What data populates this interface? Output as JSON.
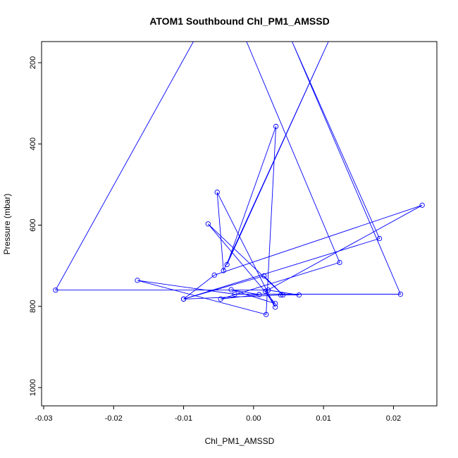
{
  "chart_data": {
    "type": "line",
    "title": "ATOM1 Southbound Chl_PM1_AMSSD",
    "xlabel": "Chl_PM1_AMSSD",
    "ylabel": "Pressure (mbar)",
    "xlim": [
      -0.0303,
      0.0262
    ],
    "ylim": [
      1045,
      148
    ],
    "y_inverted": true,
    "x_ticks": [
      -0.03,
      -0.02,
      -0.01,
      0.0,
      0.01,
      0.02
    ],
    "x_tick_labels": [
      "-0.03",
      "-0.02",
      "-0.01",
      "0.00",
      "0.01",
      "0.02"
    ],
    "y_ticks": [
      200,
      400,
      600,
      800,
      1000
    ],
    "y_tick_labels": [
      "200",
      "400",
      "600",
      "800",
      "1000"
    ],
    "grid": false,
    "series": [
      {
        "color": "#0000ff",
        "points": [
          {
            "x": -0.0086,
            "y": 148
          },
          {
            "x": -0.0283,
            "y": 760
          },
          {
            "x": 0.0021,
            "y": 760
          },
          {
            "x": 0.0065,
            "y": 772
          },
          {
            "x": 0.0039,
            "y": 772
          },
          {
            "x": -0.01,
            "y": 782
          },
          {
            "x": 0.018,
            "y": 633
          },
          {
            "x": 0.0055,
            "y": 148
          },
          {
            "x": 0.021,
            "y": 770
          },
          {
            "x": -0.0027,
            "y": 770
          },
          {
            "x": -0.0166,
            "y": 736
          },
          {
            "x": 0.0018,
            "y": 820
          },
          {
            "x": 0.0032,
            "y": 357
          },
          {
            "x": -0.0038,
            "y": 697
          },
          {
            "x": 0.0107,
            "y": 148
          },
          {
            "x": -0.0043,
            "y": 712
          },
          {
            "x": -0.0052,
            "y": 519
          },
          {
            "x": 0.0031,
            "y": 802
          },
          {
            "x": 0.0017,
            "y": 763
          },
          {
            "x": 0.0241,
            "y": 551
          },
          {
            "x": -0.0056,
            "y": 723
          },
          {
            "x": -0.01,
            "y": 782
          },
          {
            "x": 0.0015,
            "y": 725
          },
          {
            "x": 0.0042,
            "y": 772
          },
          {
            "x": -0.0065,
            "y": 597
          },
          {
            "x": 0.0031,
            "y": 793
          },
          {
            "x": -0.0032,
            "y": 759
          },
          {
            "x": 0.0008,
            "y": 771
          },
          {
            "x": -0.0047,
            "y": 782
          },
          {
            "x": 0.0123,
            "y": 692
          },
          {
            "x": -0.001,
            "y": 148
          }
        ]
      }
    ]
  }
}
